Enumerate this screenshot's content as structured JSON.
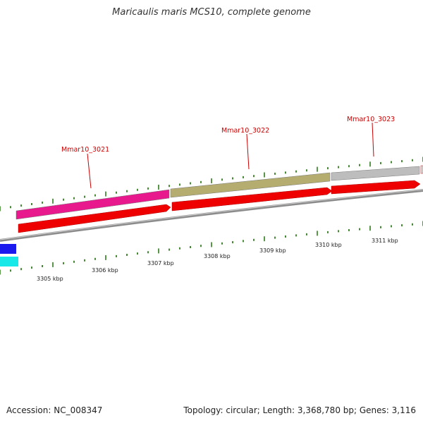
{
  "title": "Maricaulis maris MCS10, complete genome",
  "footer": {
    "accession": "Accession: NC_008347",
    "stats": "Topology: circular; Length: 3,368,780 bp; Genes: 3,116"
  },
  "genes": [
    {
      "name": "Mmar10_3021",
      "label": "Mmar10_3021",
      "color": "#e8198c"
    },
    {
      "name": "Mmar10_3022",
      "label": "Mmar10_3022",
      "color": "#b5ad70"
    },
    {
      "name": "Mmar10_3023",
      "label": "Mmar10_3023",
      "color": "#bdbdbd"
    }
  ],
  "ticks": [
    {
      "label": "3305 kbp"
    },
    {
      "label": "3306 kbp"
    },
    {
      "label": "3307 kbp"
    },
    {
      "label": "3308 kbp"
    },
    {
      "label": "3309 kbp"
    },
    {
      "label": "3310 kbp"
    },
    {
      "label": "3311 kbp"
    }
  ],
  "colors": {
    "cds": "#ee0000",
    "backbone": "#8c8c8c",
    "tick": "#2e7d1a",
    "label_line": "#cc0000",
    "other_blue": "#1a1aee",
    "other_cyan": "#18e8e8"
  }
}
